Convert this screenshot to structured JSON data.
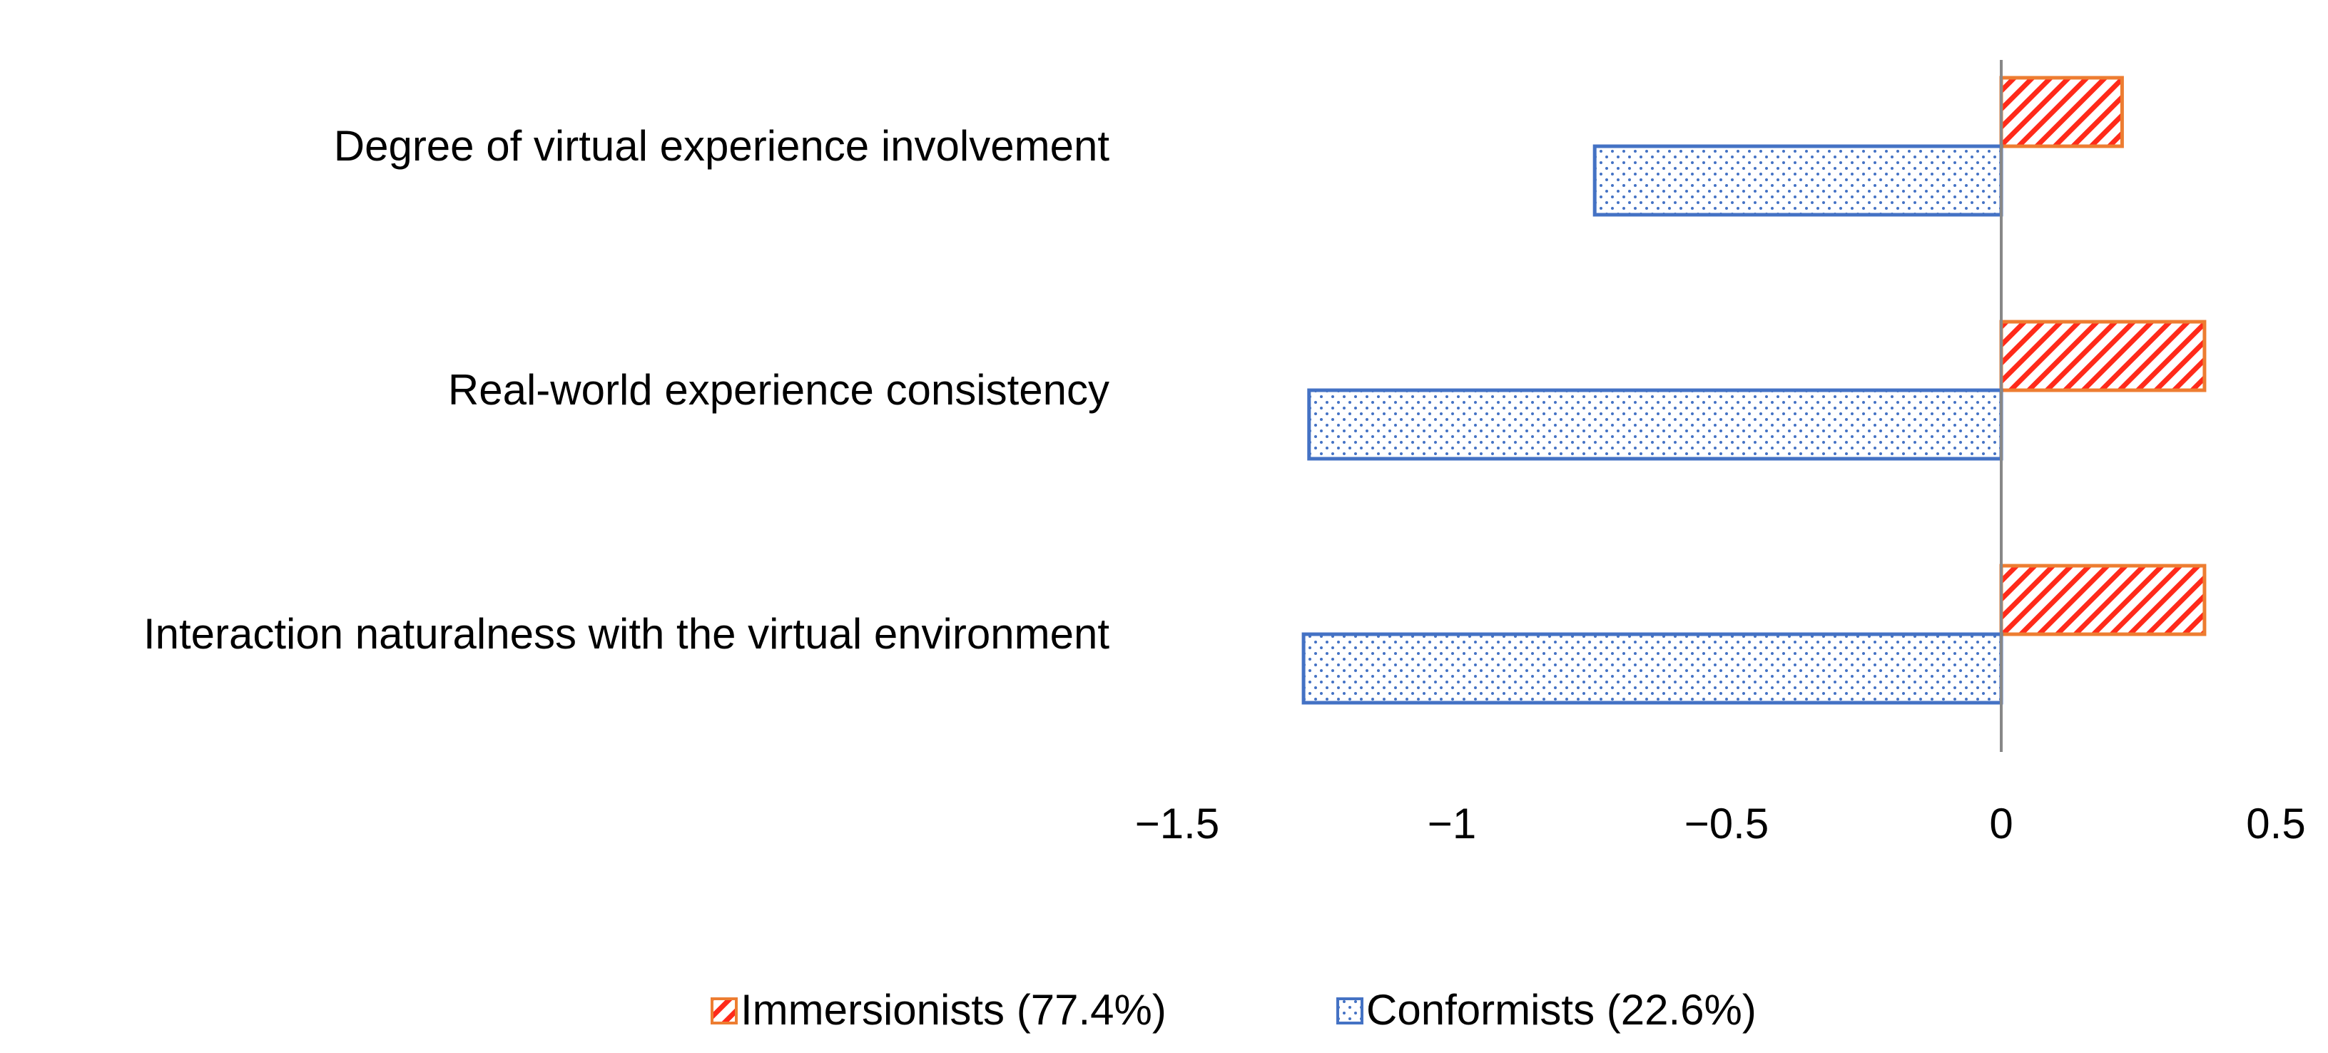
{
  "chart_data": {
    "type": "bar",
    "orientation": "horizontal",
    "categories": [
      "Degree of virtual experience involvement",
      "Real-world experience consistency",
      "Interaction naturalness with the virtual environment"
    ],
    "series": [
      {
        "name": "Immersionists (77.4%)",
        "values": [
          0.22,
          0.37,
          0.37
        ],
        "color": "#ED7D31",
        "fill": "#FF0000",
        "pattern": "diagonal-hatch"
      },
      {
        "name": "Conformists (22.6%)",
        "values": [
          -0.74,
          -1.26,
          -1.27
        ],
        "color": "#4472C4",
        "fill": "#4472C4",
        "pattern": "dots"
      }
    ],
    "xlim": [
      -1.5,
      0.5
    ],
    "xticks": [
      -1.5,
      -1,
      -0.5,
      0,
      0.5
    ],
    "xtick_labels": [
      "−1.5",
      "−1",
      "−0.5",
      "0",
      "0.5"
    ],
    "title": "",
    "xlabel": "",
    "ylabel": "",
    "grid": false,
    "legend_position": "bottom"
  }
}
